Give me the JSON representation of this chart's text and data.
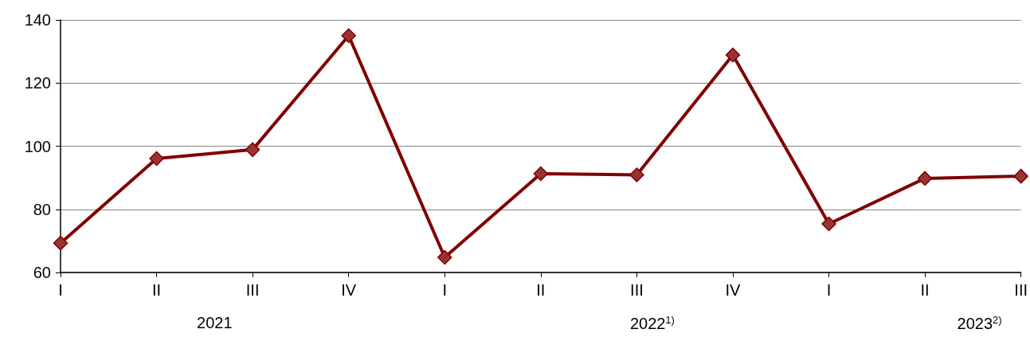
{
  "chart_data": {
    "type": "line",
    "categories": [
      "I",
      "II",
      "III",
      "IV",
      "I",
      "II",
      "III",
      "IV",
      "I",
      "II",
      "III"
    ],
    "series": [
      {
        "color": "#800000",
        "values": [
          69.3,
          96.1,
          98.9,
          135,
          64.8,
          91.3,
          90.9,
          128.9,
          75.4,
          89.8,
          90.5
        ]
      }
    ],
    "ylim": [
      60,
      140
    ],
    "yticks": [
      60,
      80,
      100,
      120,
      140
    ],
    "grid": "y",
    "marker": "diamond",
    "line_style": "solid",
    "annotations": [
      "2021",
      "2022$^{1)}$",
      "2023$^{2)}$"
    ]
  }
}
